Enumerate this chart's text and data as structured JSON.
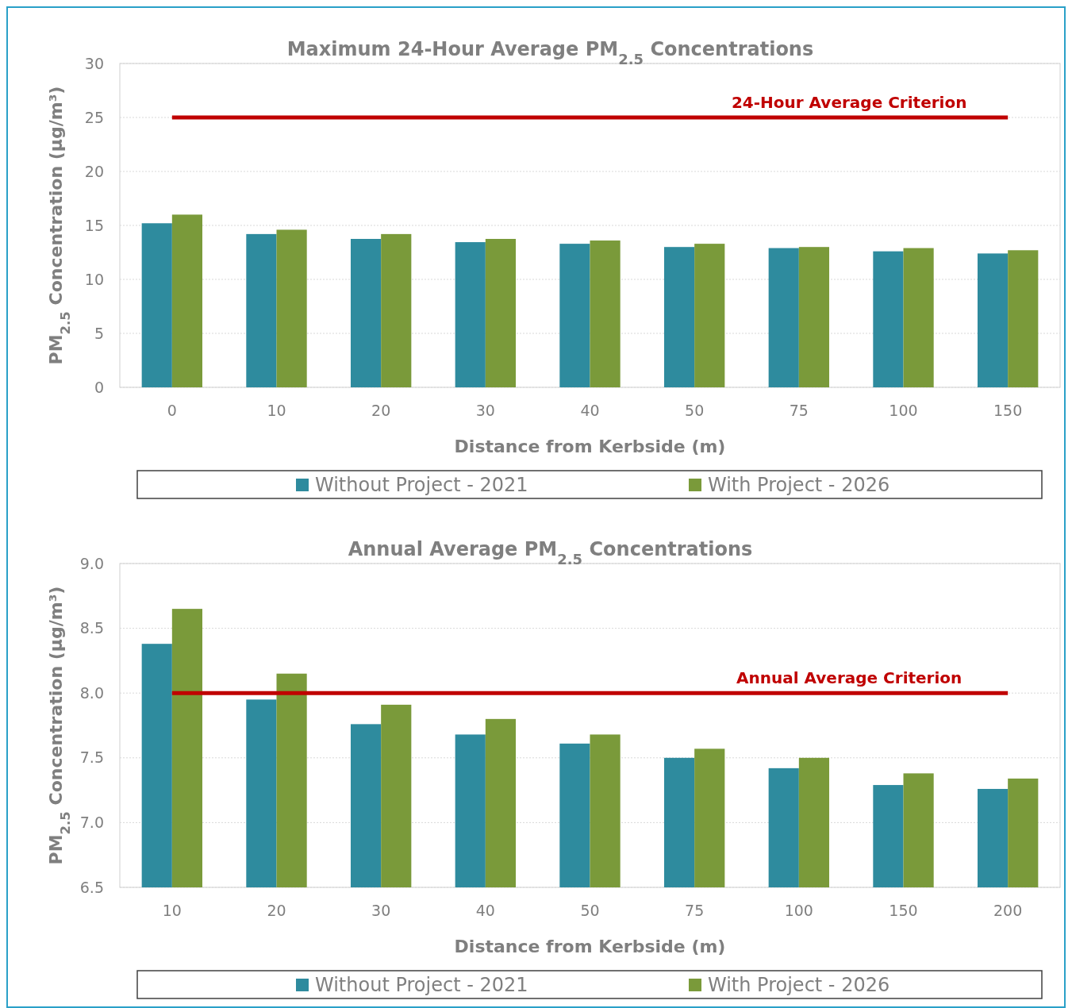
{
  "chart_data": [
    {
      "type": "bar",
      "title": "Maximum 24-Hour Average PM$_{2.5}$ Concentrations",
      "xlabel": "Distance from Kerbside (m)",
      "ylabel": "PM$_{2.5}$ Concentration (µg/m³)",
      "categories": [
        "0",
        "10",
        "20",
        "30",
        "40",
        "50",
        "75",
        "100",
        "150"
      ],
      "series": [
        {
          "name": "Without Project - 2021",
          "color": "#2e8b9e",
          "values": [
            15.2,
            14.2,
            13.75,
            13.45,
            13.3,
            13.0,
            12.9,
            12.6,
            12.4
          ]
        },
        {
          "name": "With Project - 2026",
          "color": "#7a9a3a",
          "values": [
            16.0,
            14.6,
            14.2,
            13.75,
            13.6,
            13.3,
            13.0,
            12.9,
            12.7
          ]
        }
      ],
      "ylim": [
        0,
        30
      ],
      "yticks": [
        0,
        5,
        10,
        15,
        20,
        25,
        30
      ],
      "grid": "y",
      "legend": "bottom",
      "ref_lines": [
        {
          "axis": "y",
          "value": 25,
          "label": "24-Hour Average Criterion",
          "color": "#c00000"
        }
      ]
    },
    {
      "type": "bar",
      "title": "Annual Average PM$_{2.5}$ Concentrations",
      "xlabel": "Distance from Kerbside (m)",
      "ylabel": "PM$_{2.5}$ Concentration (µg/m³)",
      "categories": [
        "10",
        "20",
        "30",
        "40",
        "50",
        "75",
        "100",
        "150",
        "200"
      ],
      "series": [
        {
          "name": "Without Project - 2021",
          "color": "#2e8b9e",
          "values": [
            8.38,
            7.95,
            7.76,
            7.68,
            7.61,
            7.5,
            7.42,
            7.29,
            7.26
          ]
        },
        {
          "name": "With Project - 2026",
          "color": "#7a9a3a",
          "values": [
            8.65,
            8.15,
            7.91,
            7.8,
            7.68,
            7.57,
            7.5,
            7.38,
            7.34
          ]
        }
      ],
      "ylim": [
        6.5,
        9
      ],
      "yticks": [
        6.5,
        {
          "value": 7,
          "label": "7.0"
        },
        7.5,
        {
          "value": 8,
          "label": "8.0"
        },
        8.5,
        {
          "value": 9,
          "label": "9.0"
        }
      ],
      "grid": "y",
      "legend": "bottom",
      "ref_lines": [
        {
          "axis": "y",
          "value": 8,
          "label": "Annual Average Criterion",
          "color": "#c00000"
        }
      ]
    }
  ]
}
